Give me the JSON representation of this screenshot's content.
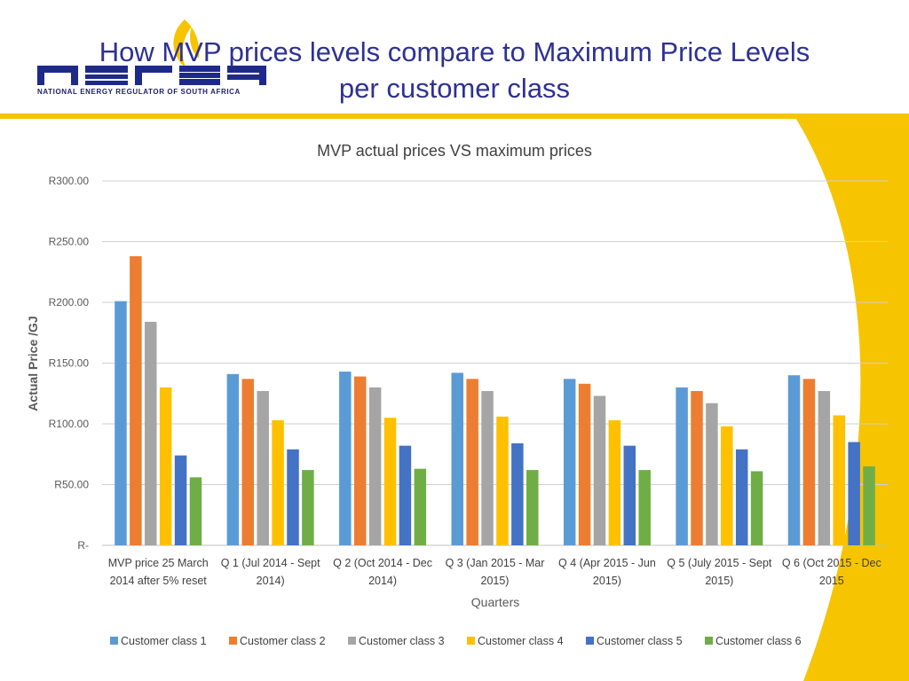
{
  "header": {
    "title_line1": "How MVP prices levels compare to Maximum Price Levels",
    "title_line2": "per customer class",
    "logo_text": "NERSA",
    "logo_tagline": "NATIONAL ENERGY REGULATOR OF SOUTH AFRICA"
  },
  "colors": {
    "title": "#2e3192",
    "band": "#f6c400",
    "series": [
      "#5b9bd5",
      "#ed7d31",
      "#a5a5a5",
      "#ffc000",
      "#4472c4",
      "#70ad47"
    ]
  },
  "chart_data": {
    "type": "bar",
    "title": "MVP actual prices VS maximum prices",
    "xlabel": "Quarters",
    "ylabel": "Actual Price /GJ",
    "ylim": [
      0,
      300
    ],
    "yticks": [
      "R-",
      "R50.00",
      "R100.00",
      "R150.00",
      "R200.00",
      "R250.00",
      "R300.00"
    ],
    "categories": [
      [
        "MVP price 25 March",
        "2014 after 5% reset"
      ],
      [
        "Q 1 (Jul 2014 - Sept",
        "2014)"
      ],
      [
        "Q 2 (Oct 2014 - Dec",
        "2014)"
      ],
      [
        "Q 3 (Jan 2015 - Mar",
        "2015)"
      ],
      [
        "Q 4 (Apr 2015 - Jun",
        "2015)"
      ],
      [
        "Q 5 (July 2015 - Sept",
        "2015)"
      ],
      [
        "Q 6 (Oct 2015 -  Dec",
        "2015"
      ]
    ],
    "series": [
      {
        "name": "Customer class 1",
        "values": [
          201,
          141,
          143,
          142,
          137,
          130,
          140
        ]
      },
      {
        "name": "Customer class 2",
        "values": [
          238,
          137,
          139,
          137,
          133,
          127,
          137
        ]
      },
      {
        "name": "Customer class 3",
        "values": [
          184,
          127,
          130,
          127,
          123,
          117,
          127
        ]
      },
      {
        "name": "Customer class 4",
        "values": [
          130,
          103,
          105,
          106,
          103,
          98,
          107
        ]
      },
      {
        "name": "Customer class 5",
        "values": [
          74,
          79,
          82,
          84,
          82,
          79,
          85
        ]
      },
      {
        "name": "Customer class 6",
        "values": [
          56,
          62,
          63,
          62,
          62,
          61,
          65
        ]
      }
    ],
    "grid": true,
    "legend": "bottom"
  }
}
